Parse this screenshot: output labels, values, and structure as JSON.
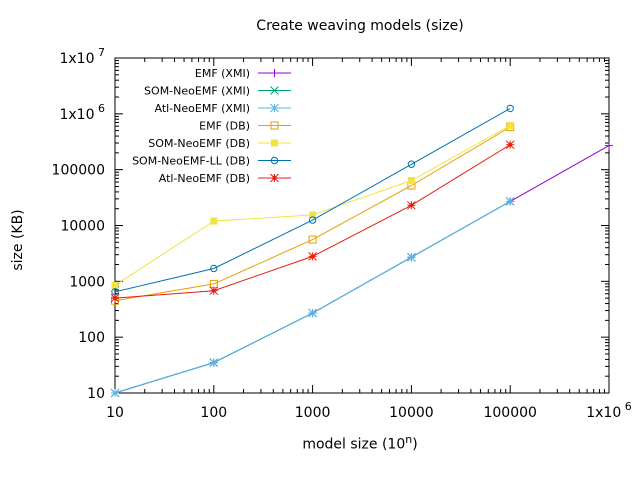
{
  "chart_data": {
    "type": "line",
    "title": "Create weaving models (size)",
    "xlabel_text": "model size (10",
    "xlabel_sup": "n",
    "xlabel_close": ")",
    "ylabel": "size (KB)",
    "xscale": "log",
    "yscale": "log",
    "xlim": [
      10,
      1000000
    ],
    "ylim": [
      10,
      10000000
    ],
    "grid": false,
    "legend_position": "top-right",
    "x_ticks": [
      {
        "value": 10,
        "label": "10",
        "sup": ""
      },
      {
        "value": 100,
        "label": "100",
        "sup": ""
      },
      {
        "value": 1000,
        "label": "1000",
        "sup": ""
      },
      {
        "value": 10000,
        "label": "10000",
        "sup": ""
      },
      {
        "value": 100000,
        "label": "100000",
        "sup": ""
      },
      {
        "value": 1000000,
        "label": "1x10",
        "sup": "6"
      }
    ],
    "y_ticks": [
      {
        "value": 10,
        "label": "10",
        "sup": ""
      },
      {
        "value": 100,
        "label": "100",
        "sup": ""
      },
      {
        "value": 1000,
        "label": "1000",
        "sup": ""
      },
      {
        "value": 10000,
        "label": "10000",
        "sup": ""
      },
      {
        "value": 100000,
        "label": "100000",
        "sup": ""
      },
      {
        "value": 1000000,
        "label": "1x10",
        "sup": "6"
      },
      {
        "value": 10000000,
        "label": "1x10",
        "sup": "7"
      }
    ],
    "series": [
      {
        "name": "EMF (XMI)",
        "color": "#9400d3",
        "marker": "plus",
        "x": [
          10,
          100,
          1000,
          10000,
          100000,
          1000000
        ],
        "y": [
          10,
          35,
          270,
          2700,
          27000,
          270000
        ]
      },
      {
        "name": "SOM-NeoEMF (XMI)",
        "color": "#009e73",
        "marker": "cross",
        "x": [
          10,
          100,
          1000,
          10000,
          100000
        ],
        "y": [
          10,
          35,
          270,
          2700,
          27000
        ]
      },
      {
        "name": "Atl-NeoEMF (XMI)",
        "color": "#56b4e9",
        "marker": "star",
        "x": [
          10,
          100,
          1000,
          10000,
          100000
        ],
        "y": [
          10,
          35,
          270,
          2700,
          27000
        ]
      },
      {
        "name": "EMF (DB)",
        "color": "#e69f00",
        "marker": "open-square",
        "x": [
          10,
          100,
          1000,
          10000,
          100000
        ],
        "y": [
          450,
          900,
          5600,
          52000,
          580000
        ]
      },
      {
        "name": "SOM-NeoEMF (DB)",
        "color": "#f0e442",
        "marker": "filled-square",
        "x": [
          10,
          100,
          1000,
          10000,
          100000
        ],
        "y": [
          850,
          12000,
          15500,
          64000,
          620000
        ]
      },
      {
        "name": "SOM-NeoEMF-LL (DB)",
        "color": "#0072b2",
        "marker": "open-circle",
        "x": [
          10,
          100,
          1000,
          10000,
          100000
        ],
        "y": [
          650,
          1700,
          12500,
          125000,
          1250000
        ]
      },
      {
        "name": "Atl-NeoEMF (DB)",
        "color": "#e51e10",
        "marker": "star-filled",
        "x": [
          10,
          100,
          1000,
          10000,
          100000
        ],
        "y": [
          500,
          680,
          2800,
          23000,
          280000
        ]
      }
    ]
  }
}
